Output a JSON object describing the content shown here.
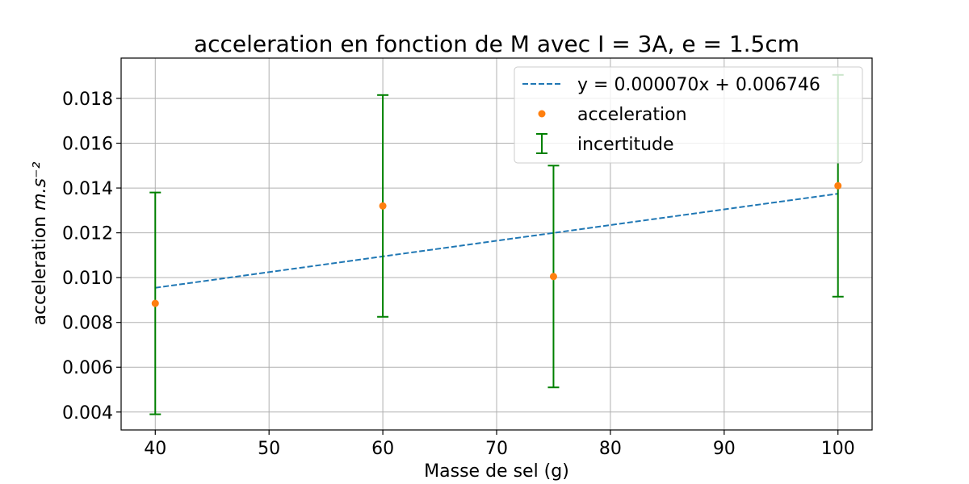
{
  "chart_data": {
    "type": "scatter",
    "title": "acceleration en fonction de M avec I = 3A, e = 1.5cm",
    "xlabel": "Masse de sel (g)",
    "ylabel": "acceleration m.s⁻²",
    "xlim": [
      37,
      103
    ],
    "ylim": [
      0.0032,
      0.0198
    ],
    "xticks": [
      40,
      50,
      60,
      70,
      80,
      90,
      100
    ],
    "yticks": [
      0.004,
      0.006,
      0.008,
      0.01,
      0.012,
      0.014,
      0.016,
      0.018
    ],
    "ytick_labels": [
      "0.004",
      "0.006",
      "0.008",
      "0.010",
      "0.012",
      "0.014",
      "0.016",
      "0.018"
    ],
    "grid": true,
    "legend_position": "top-right",
    "series": [
      {
        "name": "y = 0.000070x + 0.006746",
        "kind": "line",
        "style": "dashed",
        "color": "#1f77b4",
        "x": [
          40,
          100
        ],
        "y": [
          0.009546,
          0.013746
        ]
      },
      {
        "name": "acceleration",
        "kind": "scatter",
        "color": "#ff7f0e",
        "x": [
          40,
          60,
          75,
          100
        ],
        "y": [
          0.00885,
          0.0132,
          0.01005,
          0.0141
        ]
      },
      {
        "name": "incertitude",
        "kind": "errorbar",
        "color": "#008000",
        "x": [
          40,
          60,
          75,
          100
        ],
        "y": [
          0.00885,
          0.0132,
          0.01005,
          0.0141
        ],
        "yerr": [
          0.00495,
          0.00495,
          0.00495,
          0.00495
        ]
      }
    ]
  }
}
